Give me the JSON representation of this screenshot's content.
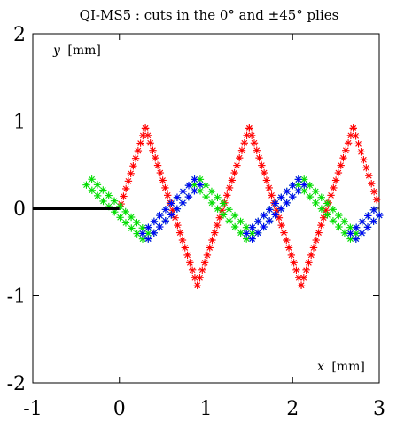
{
  "chart_data": {
    "type": "scatter",
    "title": "QI-MS5 : cuts in the 0° and ±45° plies",
    "xlabel_var": "x",
    "xlabel_unit": "[mm]",
    "ylabel_var": "y",
    "ylabel_unit": "[mm]",
    "xlim": [
      -1,
      3
    ],
    "ylim": [
      -2,
      2
    ],
    "xticks": [
      -1,
      0,
      1,
      2,
      3
    ],
    "yticks": [
      -2,
      -1,
      0,
      1,
      2
    ],
    "xtick_labels": [
      "-1",
      "0",
      "1",
      "2",
      "3"
    ],
    "ytick_labels": [
      "-2",
      "-1",
      "0",
      "1",
      "2"
    ],
    "grid": false,
    "marker": "*",
    "series": [
      {
        "color": "#ff0000",
        "style": "markers",
        "polyline": [
          [
            0.02,
            0.05
          ],
          [
            0.3,
            0.92
          ],
          [
            0.9,
            -0.88
          ],
          [
            1.5,
            0.92
          ],
          [
            2.1,
            -0.88
          ],
          [
            2.7,
            0.92
          ],
          [
            2.97,
            0.1
          ]
        ],
        "offsets": [
          0
        ]
      },
      {
        "color": "#00dd00",
        "style": "markers",
        "polyline": [
          [
            -0.35,
            0.3
          ],
          [
            0.3,
            -0.32
          ],
          [
            0.9,
            0.3
          ],
          [
            1.5,
            -0.32
          ],
          [
            2.1,
            0.3
          ],
          [
            2.7,
            -0.32
          ],
          [
            2.97,
            -0.05
          ]
        ],
        "offsets": [
          0.045,
          -0.045
        ]
      },
      {
        "color": "#0000ff",
        "style": "markers",
        "polyline": [
          [
            0.3,
            -0.32
          ],
          [
            0.9,
            0.3
          ],
          [
            1.5,
            -0.32
          ],
          [
            2.1,
            0.3
          ],
          [
            2.7,
            -0.32
          ],
          [
            2.97,
            -0.05
          ]
        ],
        "offsets": [
          0.045,
          -0.045
        ],
        "segments": "rising"
      },
      {
        "color": "#000000",
        "style": "line",
        "polyline": [
          [
            -1,
            0
          ],
          [
            0,
            0
          ]
        ]
      }
    ]
  }
}
